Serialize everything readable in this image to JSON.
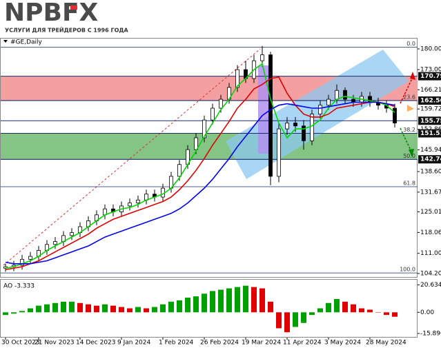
{
  "logo": {
    "text": "NPBFX",
    "tagline": "УСЛУГИ ДЛЯ ТРЕЙДЕРОВ С 1996 ГОДА"
  },
  "chart_data": [
    {
      "type": "candlestick",
      "title": "#GE,Daily",
      "categories": [
        "30 Oct 2023",
        null,
        null,
        null,
        "21 Nov 2023",
        null,
        null,
        null,
        null,
        "14 Dec 2023",
        null,
        null,
        null,
        null,
        "9 Jan 2024",
        null,
        null,
        null,
        null,
        "1 Feb 2024",
        null,
        null,
        null,
        null,
        "26 Feb 2024",
        null,
        null,
        null,
        null,
        "19 Mar 2024",
        null,
        null,
        null,
        null,
        "11 Apr 2024",
        null,
        null,
        null,
        null,
        "3 May 2024",
        null,
        null,
        null,
        null,
        "28 May 2024",
        null,
        null,
        null
      ],
      "open": [
        106,
        106.5,
        107,
        109,
        110,
        112,
        114,
        115,
        117,
        118,
        120,
        122,
        124,
        126,
        125,
        127,
        128,
        129,
        131,
        130,
        133,
        137,
        141,
        146,
        150,
        156,
        160,
        163,
        167,
        173,
        170,
        176,
        178,
        137,
        153,
        155,
        154,
        149,
        158,
        161,
        163,
        166,
        163,
        162,
        164,
        162,
        161,
        160
      ],
      "high": [
        107.5,
        108.5,
        110.5,
        111.5,
        113.5,
        115.5,
        116.5,
        118.5,
        119.5,
        121.5,
        123.5,
        125.5,
        127.5,
        127.5,
        128.5,
        129.5,
        130.5,
        132.5,
        132.5,
        134.5,
        138.5,
        142.5,
        147.5,
        151.5,
        157.5,
        161.5,
        164.5,
        168.5,
        174.5,
        176,
        178,
        181,
        179,
        155,
        157,
        157,
        156,
        159.5,
        162.5,
        164.5,
        168,
        167,
        164.5,
        165.5,
        165.5,
        163.5,
        162.5,
        161.5
      ],
      "low": [
        104.8,
        105,
        105.5,
        107.5,
        108.5,
        110.5,
        112.5,
        113.5,
        115.5,
        116.5,
        118.5,
        120.5,
        122.5,
        123.5,
        123.5,
        125.5,
        126.5,
        127.5,
        128.5,
        128.5,
        131.5,
        135.5,
        139.5,
        144.5,
        148.5,
        154.5,
        158.5,
        161.5,
        165.5,
        168.5,
        168.5,
        174,
        134,
        135,
        151,
        152,
        146,
        147.5,
        156.5,
        159.5,
        161.5,
        161.5,
        160.5,
        160.5,
        160.5,
        159.5,
        158.5,
        153.5
      ],
      "close": [
        106.5,
        107,
        109,
        110,
        112,
        114,
        115,
        117,
        118,
        120,
        122,
        124,
        126,
        125,
        127,
        128,
        129,
        131,
        130,
        133,
        137,
        141,
        146,
        150,
        156,
        160,
        163,
        167,
        173,
        170,
        176,
        178,
        137,
        153,
        155,
        154,
        149,
        158,
        161,
        163,
        166,
        163,
        162,
        164,
        162,
        161,
        160,
        155
      ],
      "up_color": "#ffffff",
      "down_color": "#000000",
      "edge_color": "#000000",
      "series": [
        {
          "color": "#00d800",
          "values": [
            106,
            106.5,
            107.5,
            108.5,
            110,
            112,
            113.5,
            115,
            116.5,
            118,
            120,
            122,
            124,
            125,
            126,
            126.5,
            127.5,
            129,
            130,
            131,
            133,
            136.5,
            141,
            145.5,
            150.5,
            155,
            159.5,
            163,
            167.5,
            170,
            173,
            175,
            163,
            155,
            150,
            153,
            153,
            154,
            156,
            160,
            163,
            164,
            163.5,
            163,
            162.5,
            162,
            161,
            158.5
          ]
        },
        {
          "color": "#e00000",
          "values": [
            105.5,
            106,
            106.5,
            107.5,
            108.5,
            110,
            111.5,
            113,
            114.5,
            116,
            117.5,
            119.5,
            121,
            122.5,
            123.5,
            124.5,
            125.5,
            126.5,
            127.5,
            128.5,
            130,
            132.5,
            135.5,
            139,
            143,
            147.5,
            151.5,
            155.5,
            160,
            163,
            166.5,
            168,
            170,
            170.5,
            165,
            161,
            158,
            157,
            157,
            158,
            160,
            160.5,
            161,
            161.5,
            162,
            162,
            161.5,
            160.5
          ]
        },
        {
          "color": "#0000ee",
          "values": [
            108,
            107.5,
            107.5,
            107.5,
            108,
            108.5,
            109.5,
            110.5,
            111.5,
            112.5,
            113.5,
            115,
            116.5,
            117.5,
            118.5,
            119.5,
            120.5,
            121.5,
            122.5,
            123.5,
            124.5,
            126,
            128,
            130.5,
            133,
            136,
            139.5,
            143,
            147,
            150.5,
            154,
            157.5,
            159.5,
            161,
            161.5,
            161,
            160.5,
            160,
            160,
            160.5,
            161,
            161.5,
            162,
            162,
            162,
            162,
            161.5,
            161
          ]
        }
      ],
      "ylim": [
        103.5,
        182.55
      ],
      "yticks": [
        {
          "value": 180,
          "label": "180.00"
        },
        {
          "value": 173,
          "label": "173.00"
        },
        166.21,
        159.72,
        152.86,
        145.94,
        {
          "value": 138.6,
          "label": "138.60"
        },
        131.67,
        125.01,
        118.06,
        {
          "value": 111,
          "label": "111.00"
        },
        {
          "value": 104.2,
          "label": "104.20"
        }
      ],
      "zones": [
        {
          "from": 170.79,
          "to": 162.56,
          "color": "#f4a0a0"
        },
        {
          "from": 151.51,
          "to": 142.74,
          "color": "#84c484"
        }
      ],
      "fib_levels": [
        {
          "value": 180.6,
          "label": "0.0"
        },
        {
          "value": 162.6,
          "label": "23.6"
        },
        {
          "value": 151.5,
          "label": "38.2"
        },
        {
          "value": 142.7,
          "label": "50.0"
        },
        {
          "value": 133.5,
          "label": "61.8"
        },
        {
          "value": 104.4,
          "label": "100.0"
        }
      ],
      "price_markers": [
        170.79,
        162.56,
        155.75,
        151.51,
        142.74
      ]
    },
    {
      "type": "bar",
      "title": "AO -3.333",
      "values": [
        -2,
        -1,
        1,
        3,
        5,
        6,
        7,
        8,
        8,
        7,
        6,
        5,
        6,
        5,
        4,
        3,
        4,
        3,
        4,
        6,
        8,
        9,
        11,
        12,
        14,
        16,
        17,
        18,
        19,
        20,
        19,
        18,
        8,
        -12,
        -15,
        -11,
        -8,
        -2,
        3,
        7,
        10,
        8,
        6,
        3,
        2,
        0,
        -2,
        -3.333
      ],
      "up_color": "#00a000",
      "down_color": "#e00000",
      "ylim": [
        -18.5,
        24.5
      ],
      "yticks": [
        20.634,
        {
          "value": 0,
          "label": "0.00"
        },
        -15.896
      ]
    }
  ]
}
